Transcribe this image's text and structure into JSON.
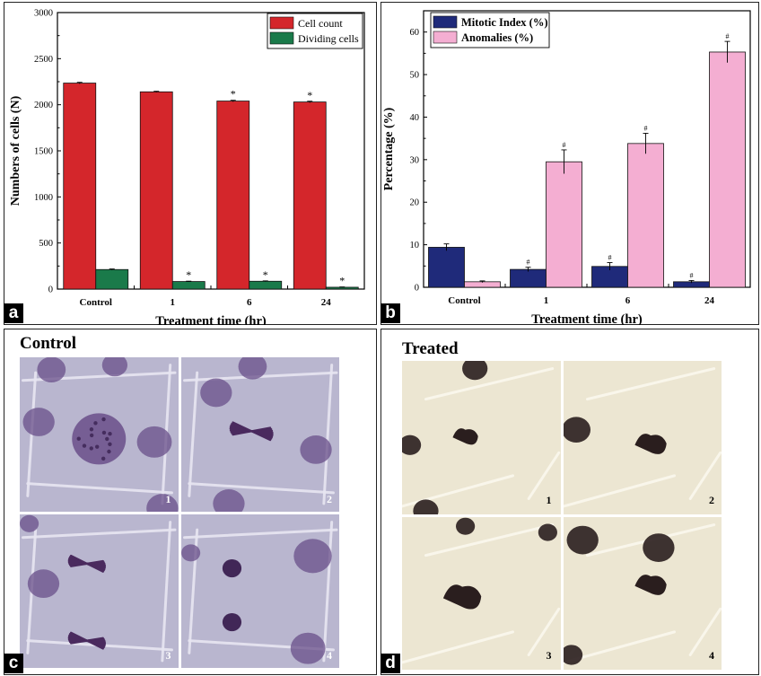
{
  "chart_data": [
    {
      "panel": "a",
      "type": "bar",
      "categories": [
        "Control",
        "1",
        "6",
        "24"
      ],
      "series": [
        {
          "name": "Cell count",
          "values": [
            2235,
            2140,
            2040,
            2030
          ],
          "errors": [
            8,
            6,
            8,
            8
          ],
          "marks": [
            "",
            "",
            "*",
            "*"
          ],
          "color": "#d4262b"
        },
        {
          "name": "Dividing cells",
          "values": [
            212,
            82,
            85,
            20
          ],
          "errors": [
            6,
            4,
            4,
            3
          ],
          "marks": [
            "",
            "*",
            "*",
            "*"
          ],
          "color": "#1a7a4a"
        }
      ],
      "xlabel": "Treatment time (hr)",
      "ylabel": "Numbers of cells (N)",
      "ylim": [
        0,
        3000
      ],
      "yticks": [
        "0",
        "500",
        "1000",
        "1500",
        "2000",
        "2500",
        "3000"
      ],
      "legend": "top-right"
    },
    {
      "panel": "b",
      "type": "bar",
      "categories": [
        "Control",
        "1",
        "6",
        "24"
      ],
      "series": [
        {
          "name": "Mitotic Index (%)",
          "values": [
            9.4,
            4.2,
            4.9,
            1.3
          ],
          "errors": [
            0.8,
            0.5,
            0.9,
            0.3
          ],
          "marks": [
            "",
            "#",
            "#",
            "#"
          ],
          "color": "#1f2a7a"
        },
        {
          "name": "Anomalies (%)",
          "values": [
            1.3,
            29.5,
            33.8,
            55.3
          ],
          "errors": [
            0.2,
            2.8,
            2.4,
            2.5
          ],
          "marks": [
            "",
            "#",
            "#",
            "#"
          ],
          "color": "#f4aed2"
        }
      ],
      "xlabel": "Treatment time (hr)",
      "ylabel": "Percentage (%)",
      "ylim": [
        0,
        65
      ],
      "yticks": [
        "0",
        "10",
        "20",
        "30",
        "40",
        "50",
        "60"
      ],
      "legend": "top-left"
    }
  ],
  "panels": {
    "a_letter": "a",
    "b_letter": "b",
    "c_letter": "c",
    "d_letter": "d",
    "c_title": "Control",
    "d_title": "Treated",
    "c_numbers": [
      "1",
      "2",
      "3",
      "4"
    ],
    "d_numbers": [
      "1",
      "2",
      "3",
      "4"
    ]
  },
  "colors": {
    "control_bg": "#b9b6cf",
    "control_nucleus": "#6a4f8a",
    "treated_bg": "#ece6d2",
    "treated_nucleus": "#2a1e1e"
  }
}
